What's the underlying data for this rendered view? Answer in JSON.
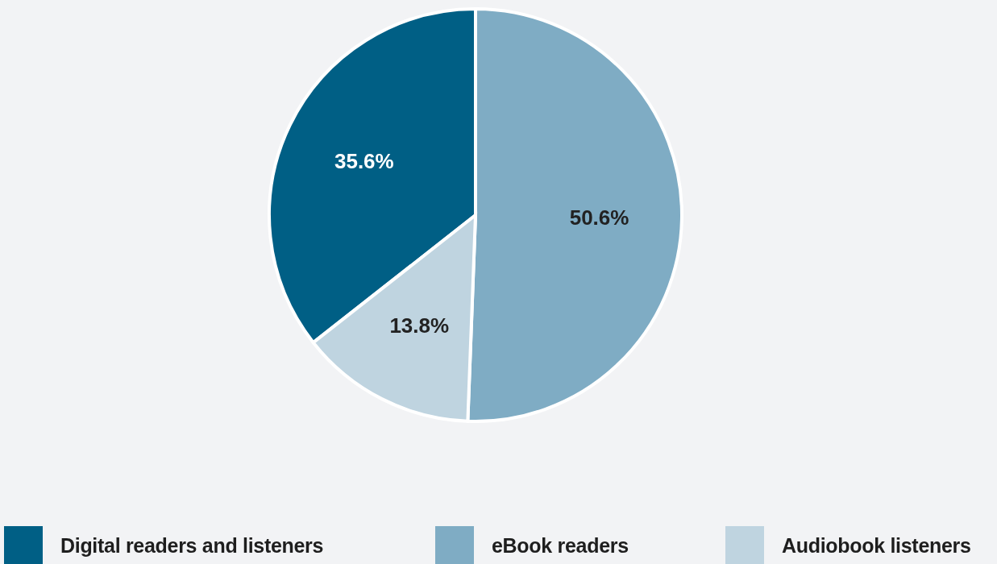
{
  "chart_data": {
    "type": "pie",
    "categories": [
      "Digital readers and listeners",
      "eBook readers",
      "Audiobook listeners"
    ],
    "values": [
      35.6,
      50.6,
      13.8
    ],
    "colors": [
      "#005f85",
      "#7facc4",
      "#bfd4e0"
    ],
    "value_labels": [
      "35.6%",
      "50.6%",
      "13.8%"
    ],
    "legend": "bottom"
  }
}
